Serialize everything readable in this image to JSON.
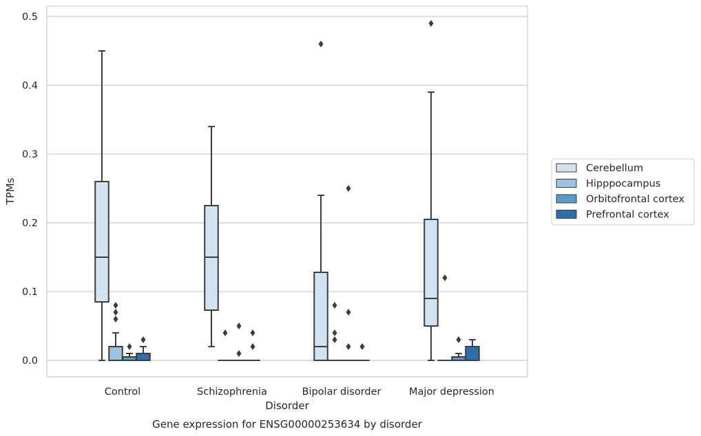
{
  "chart_data": {
    "type": "box",
    "title": "",
    "caption": "Gene expression for ENSG00000253634 by disorder",
    "xlabel": "Disorder",
    "ylabel": "TPMs",
    "ylim": [
      -0.024,
      0.515
    ],
    "yticks": [
      0.0,
      0.1,
      0.2,
      0.3,
      0.4,
      0.5
    ],
    "ytick_labels": [
      "0.0",
      "0.1",
      "0.2",
      "0.3",
      "0.4",
      "0.5"
    ],
    "grid": true,
    "legend_position": "right",
    "categories": [
      "Control",
      "Schizophrenia",
      "Bipolar disorder",
      "Major depression"
    ],
    "series": [
      {
        "name": "Cerebellum",
        "color": "#d2e3f2",
        "boxes": [
          {
            "category": "Control",
            "min": 0.0,
            "q1": 0.085,
            "median": 0.15,
            "q3": 0.26,
            "max": 0.45,
            "outliers": []
          },
          {
            "category": "Schizophrenia",
            "min": 0.02,
            "q1": 0.073,
            "median": 0.15,
            "q3": 0.225,
            "max": 0.34,
            "outliers": []
          },
          {
            "category": "Bipolar disorder",
            "min": 0.0,
            "q1": 0.0,
            "median": 0.02,
            "q3": 0.128,
            "max": 0.24,
            "outliers": [
              0.46
            ]
          },
          {
            "category": "Major depression",
            "min": 0.0,
            "q1": 0.05,
            "median": 0.09,
            "q3": 0.205,
            "max": 0.39,
            "outliers": [
              0.49
            ]
          }
        ]
      },
      {
        "name": "Hipppocampus",
        "color": "#9ac3df",
        "boxes": [
          {
            "category": "Control",
            "min": 0.0,
            "q1": 0.0,
            "median": 0.0,
            "q3": 0.02,
            "max": 0.04,
            "outliers": [
              0.06,
              0.07,
              0.08
            ]
          },
          {
            "category": "Schizophrenia",
            "min": 0.0,
            "q1": 0.0,
            "median": 0.0,
            "q3": 0.0,
            "max": 0.0,
            "outliers": [
              0.04
            ]
          },
          {
            "category": "Bipolar disorder",
            "min": 0.0,
            "q1": 0.0,
            "median": 0.0,
            "q3": 0.0,
            "max": 0.0,
            "outliers": [
              0.03,
              0.04,
              0.08
            ]
          },
          {
            "category": "Major depression",
            "min": 0.0,
            "q1": 0.0,
            "median": 0.0,
            "q3": 0.0,
            "max": 0.0,
            "outliers": [
              0.12
            ]
          }
        ]
      },
      {
        "name": "Orbitofrontal cortex",
        "color": "#5b9bc9",
        "boxes": [
          {
            "category": "Control",
            "min": 0.0,
            "q1": 0.0,
            "median": 0.0,
            "q3": 0.005,
            "max": 0.01,
            "outliers": [
              0.02
            ]
          },
          {
            "category": "Schizophrenia",
            "min": 0.0,
            "q1": 0.0,
            "median": 0.0,
            "q3": 0.0,
            "max": 0.0,
            "outliers": [
              0.01,
              0.05
            ]
          },
          {
            "category": "Bipolar disorder",
            "min": 0.0,
            "q1": 0.0,
            "median": 0.0,
            "q3": 0.0,
            "max": 0.0,
            "outliers": [
              0.02,
              0.07,
              0.25
            ]
          },
          {
            "category": "Major depression",
            "min": 0.0,
            "q1": 0.0,
            "median": 0.0,
            "q3": 0.005,
            "max": 0.01,
            "outliers": [
              0.03
            ]
          }
        ]
      },
      {
        "name": "Prefrontal cortex",
        "color": "#2a6fae",
        "boxes": [
          {
            "category": "Control",
            "min": 0.0,
            "q1": 0.0,
            "median": 0.0,
            "q3": 0.01,
            "max": 0.02,
            "outliers": [
              0.03
            ]
          },
          {
            "category": "Schizophrenia",
            "min": 0.0,
            "q1": 0.0,
            "median": 0.0,
            "q3": 0.0,
            "max": 0.0,
            "outliers": [
              0.02,
              0.04
            ]
          },
          {
            "category": "Bipolar disorder",
            "min": 0.0,
            "q1": 0.0,
            "median": 0.0,
            "q3": 0.0,
            "max": 0.0,
            "outliers": [
              0.02
            ]
          },
          {
            "category": "Major depression",
            "min": 0.0,
            "q1": 0.0,
            "median": 0.0,
            "q3": 0.02,
            "max": 0.03,
            "outliers": []
          }
        ]
      }
    ]
  }
}
